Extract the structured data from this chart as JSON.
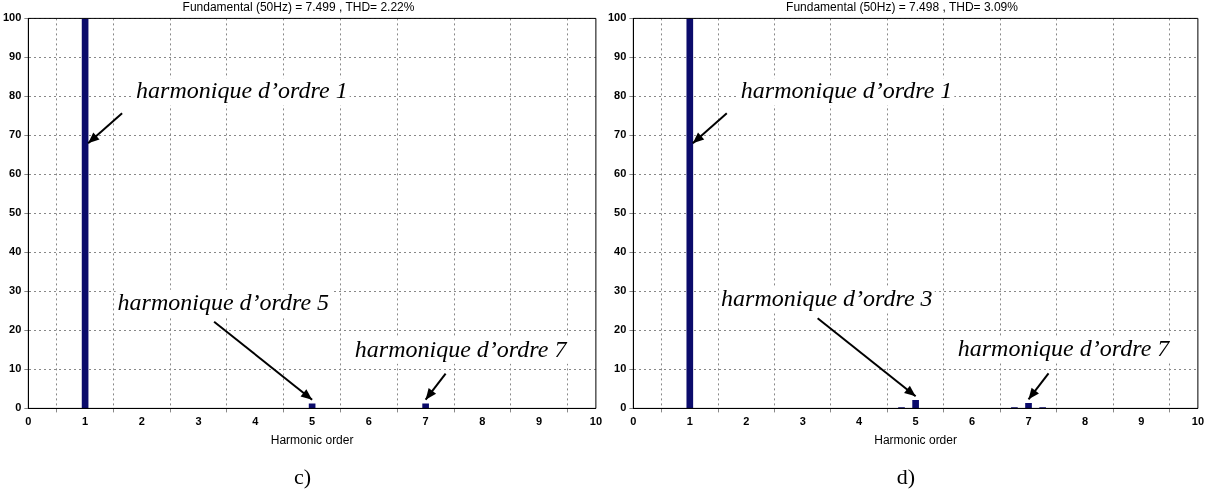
{
  "chart_data": [
    {
      "type": "bar",
      "title": "Fundamental (50Hz) = 7.499 , THD= 2.22%",
      "xlabel": "Harmonic order",
      "x": [
        1,
        5,
        7
      ],
      "values": [
        100,
        1.2,
        1.2
      ],
      "color": "#0b0b6b",
      "xlim": [
        0,
        10
      ],
      "xticks": [
        0,
        1,
        2,
        3,
        4,
        5,
        6,
        7,
        8,
        9,
        10
      ],
      "ylim": [
        0,
        100
      ],
      "yticks": [
        0,
        10,
        20,
        30,
        40,
        50,
        60,
        70,
        80,
        90,
        100
      ],
      "grid": true,
      "legend": false,
      "annotations": [
        {
          "text": "harmonique d’ordre 1",
          "x": 1,
          "y": 68
        },
        {
          "text": "harmonique d’ordre 5",
          "x": 5,
          "y": 1.2
        },
        {
          "text": "harmonique d’ordre 7",
          "x": 7,
          "y": 1.2
        },
        "c)"
      ]
    },
    {
      "type": "bar",
      "title": "Fundamental (50Hz) = 7.498 , THD= 3.09%",
      "xlabel": "Harmonic order",
      "x": [
        1,
        4.75,
        5,
        6.75,
        7,
        7.25
      ],
      "values": [
        100,
        0.2,
        2.1,
        0.2,
        1.3,
        0.2
      ],
      "color": "#0b0b6b",
      "xlim": [
        0,
        10
      ],
      "xticks": [
        0,
        1,
        2,
        3,
        4,
        5,
        6,
        7,
        8,
        9,
        10
      ],
      "ylim": [
        0,
        100
      ],
      "yticks": [
        0,
        10,
        20,
        30,
        40,
        50,
        60,
        70,
        80,
        90,
        100
      ],
      "grid": true,
      "legend": false,
      "annotations": [
        {
          "text": "harmonique d’ordre 1",
          "x": 1,
          "y": 68
        },
        {
          "text": "harmonique d’ordre 3",
          "x": 5,
          "y": 2.1
        },
        {
          "text": "harmonique d’ordre 7",
          "x": 7,
          "y": 1.3
        },
        "d)"
      ]
    }
  ]
}
